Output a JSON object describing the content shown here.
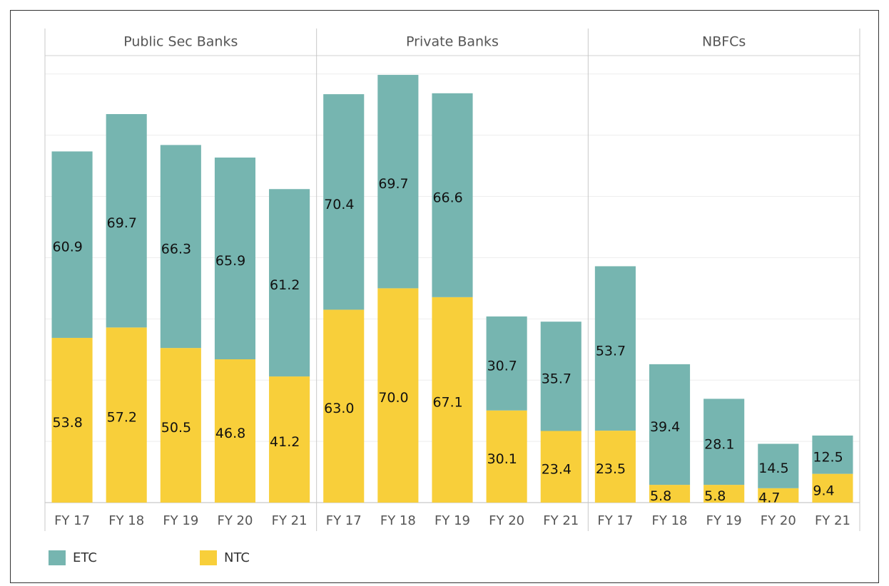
{
  "chart_data": {
    "type": "bar",
    "stacked": true,
    "grid": true,
    "legend": "bottom-left",
    "ylim": [
      0,
      146
    ],
    "yticks": [
      0,
      20,
      40,
      60,
      80,
      100,
      120,
      140
    ],
    "panels": [
      {
        "title": "Public Sec Banks",
        "categories": [
          "FY 17",
          "FY 18",
          "FY 19",
          "FY 20",
          "FY 21"
        ]
      },
      {
        "title": "Private Banks",
        "categories": [
          "FY 17",
          "FY 18",
          "FY 19",
          "FY 20",
          "FY 21"
        ]
      },
      {
        "title": "NBFCs",
        "categories": [
          "FY 17",
          "FY 18",
          "FY 19",
          "FY 20",
          "FY 21"
        ]
      }
    ],
    "series": [
      {
        "name": "NTC",
        "color": "#f8cf3a",
        "values": [
          [
            53.8,
            57.2,
            50.5,
            46.8,
            41.2
          ],
          [
            63.0,
            70.0,
            67.1,
            30.1,
            23.4
          ],
          [
            23.5,
            5.8,
            5.8,
            4.7,
            9.4
          ]
        ],
        "value_labels": [
          [
            "53.8",
            "57.2",
            "50.5",
            "46.8",
            "41.2"
          ],
          [
            "63.0",
            "70.0",
            "67.1",
            "30.1",
            "23.4"
          ],
          [
            "23.5",
            "5.8",
            "5.8",
            "4.7",
            "9.4"
          ]
        ]
      },
      {
        "name": "ETC",
        "color": "#76b5b0",
        "values": [
          [
            60.9,
            69.7,
            66.3,
            65.9,
            61.2
          ],
          [
            70.4,
            69.7,
            66.6,
            30.7,
            35.7
          ],
          [
            53.7,
            39.4,
            28.1,
            14.5,
            12.5
          ]
        ]
      }
    ]
  }
}
